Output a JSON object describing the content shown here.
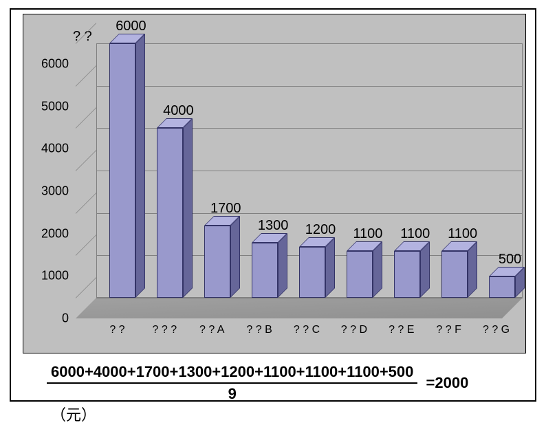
{
  "chart": {
    "type": "bar",
    "extra_label": "? ?",
    "categories": [
      "? ?",
      "? ? ?",
      "? ? A",
      "? ? B",
      "? ? C",
      "? ? D",
      "? ? E",
      "? ? F",
      "? ? G"
    ],
    "values": [
      6000,
      4000,
      1700,
      1300,
      1200,
      1100,
      1100,
      1100,
      500
    ],
    "value_labels": [
      "6000",
      "4000",
      "1700",
      "1300",
      "1200",
      "1100",
      "1100",
      "1100",
      "500"
    ],
    "ylim": [
      0,
      6000
    ],
    "ytick_step": 1000,
    "yticks": [
      "0",
      "1000",
      "2000",
      "3000",
      "4000",
      "5000",
      "6000"
    ],
    "bar_front_color": "#9999cc",
    "bar_top_color": "#b3b3e0",
    "bar_side_color": "#666699",
    "background_color": "#bfbfbf",
    "grid_color": "#808080",
    "label_fontsize": 20,
    "tick_fontsize": 18
  },
  "formula": {
    "numerator": "6000+4000+1700+1300+1200+1100+1100+1100+500",
    "denominator": "9",
    "result": "=2000",
    "unit": "（元）"
  }
}
